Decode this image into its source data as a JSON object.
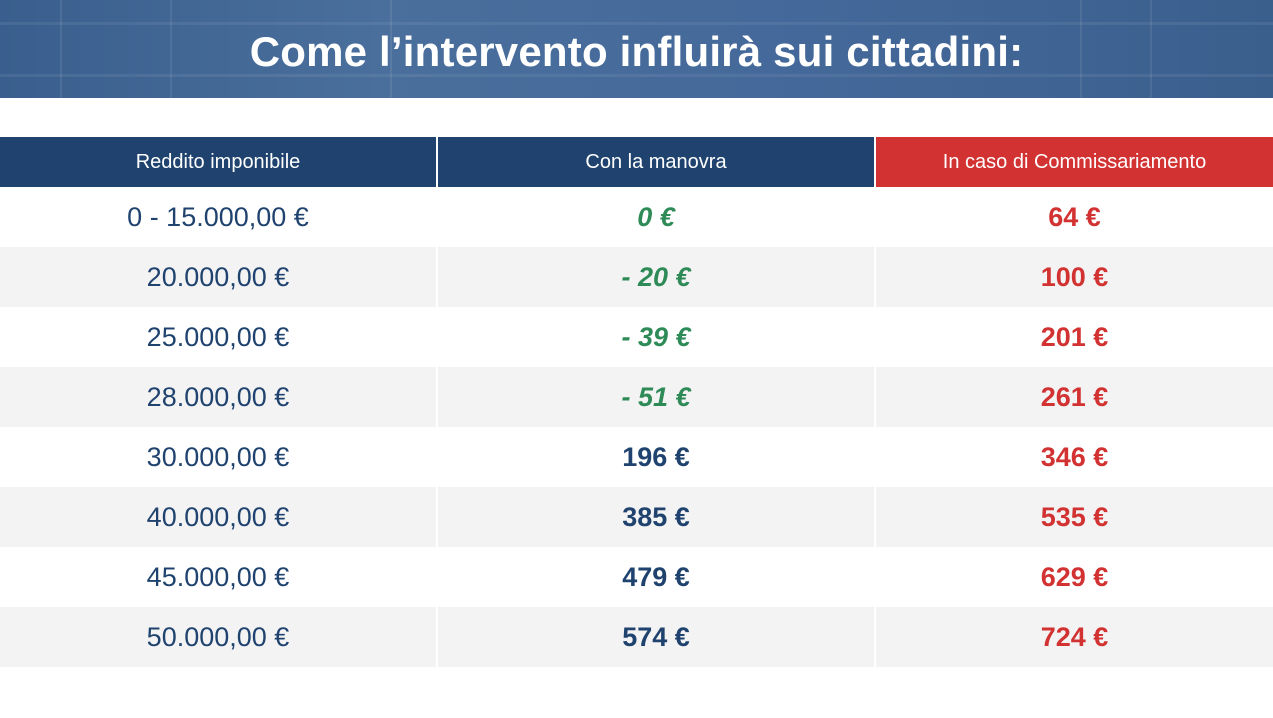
{
  "title": "Come l’intervento influirà sui cittadini:",
  "colors": {
    "header_blue": "#1f436e",
    "header_red": "#d23232",
    "negative_green": "#2e8b57",
    "banner_blue": "#4a6f9c"
  },
  "table": {
    "headers": [
      "Reddito imponibile",
      "Con la manovra",
      "In caso di Commissariamento"
    ],
    "rows": [
      {
        "reddito": "0 - 15.000,00 €",
        "manovra": "0 €",
        "commissariamento": "64 €",
        "manovra_type": "neg"
      },
      {
        "reddito": "20.000,00 €",
        "manovra": "- 20 €",
        "commissariamento": "100 €",
        "manovra_type": "neg"
      },
      {
        "reddito": "25.000,00 €",
        "manovra": "- 39 €",
        "commissariamento": "201 €",
        "manovra_type": "neg"
      },
      {
        "reddito": "28.000,00 €",
        "manovra": "- 51 €",
        "commissariamento": "261 €",
        "manovra_type": "neg"
      },
      {
        "reddito": "30.000,00 €",
        "manovra": "196 €",
        "commissariamento": "346 €",
        "manovra_type": "pos"
      },
      {
        "reddito": "40.000,00 €",
        "manovra": "385 €",
        "commissariamento": "535 €",
        "manovra_type": "pos"
      },
      {
        "reddito": "45.000,00 €",
        "manovra": "479 €",
        "commissariamento": "629 €",
        "manovra_type": "pos"
      },
      {
        "reddito": "50.000,00 €",
        "manovra": "574 €",
        "commissariamento": "724 €",
        "manovra_type": "pos"
      }
    ]
  }
}
